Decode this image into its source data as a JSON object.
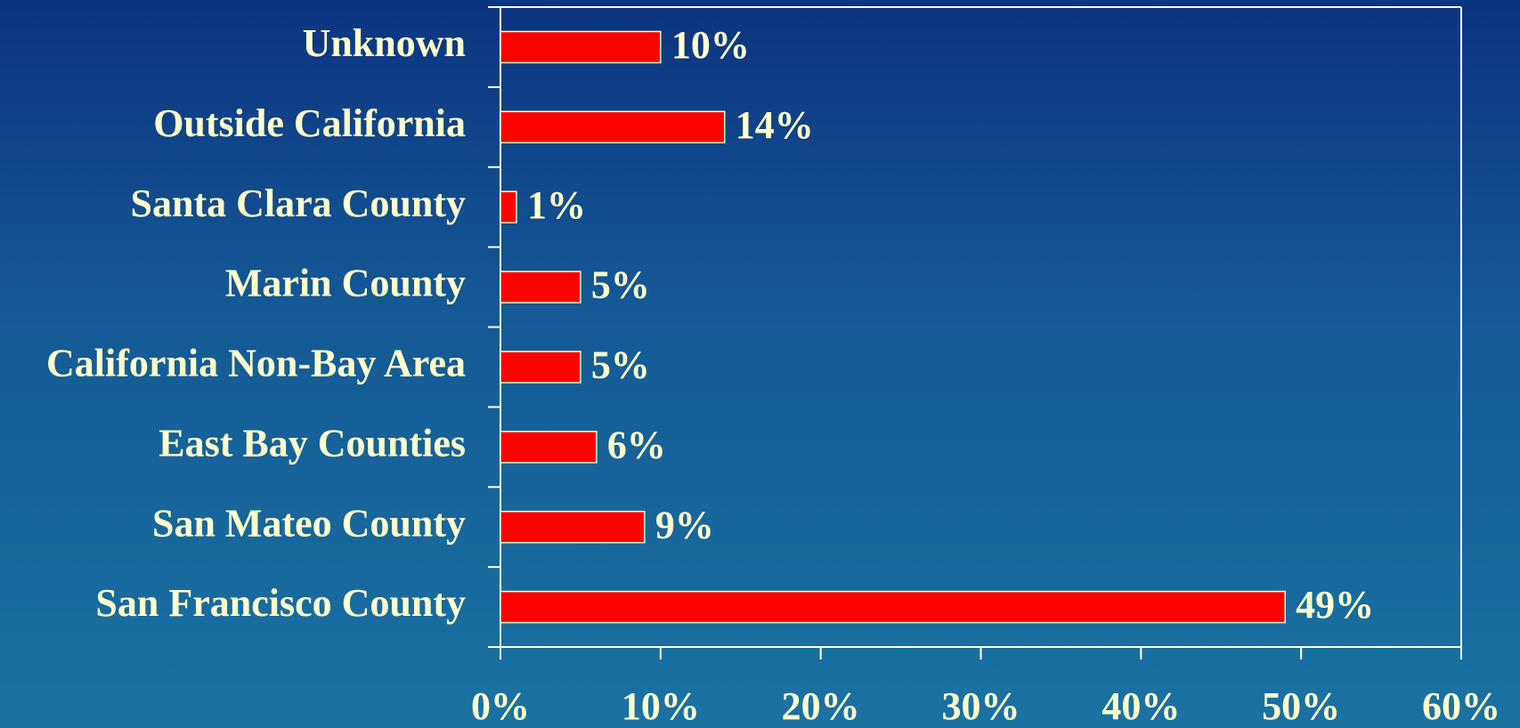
{
  "chart_data": {
    "type": "bar",
    "orientation": "horizontal",
    "categories": [
      "Unknown",
      "Outside California",
      "Santa Clara County",
      "Marin County",
      "California Non-Bay Area",
      "East Bay Counties",
      "San Mateo County",
      "San Francisco County"
    ],
    "values": [
      10,
      14,
      1,
      5,
      5,
      6,
      9,
      49
    ],
    "value_labels": [
      "10%",
      "14%",
      "1%",
      "5%",
      "5%",
      "6%",
      "9%",
      "49%"
    ],
    "color": "#ff0000",
    "xlim": [
      0,
      60
    ],
    "xticks": [
      {
        "value": 0,
        "label": "0%"
      },
      {
        "value": 10,
        "label": "10%"
      },
      {
        "value": 20,
        "label": "20%"
      },
      {
        "value": 30,
        "label": "30%"
      },
      {
        "value": 40,
        "label": "40%"
      },
      {
        "value": 50,
        "label": "50%"
      },
      {
        "value": 60,
        "label": "60%"
      }
    ]
  }
}
